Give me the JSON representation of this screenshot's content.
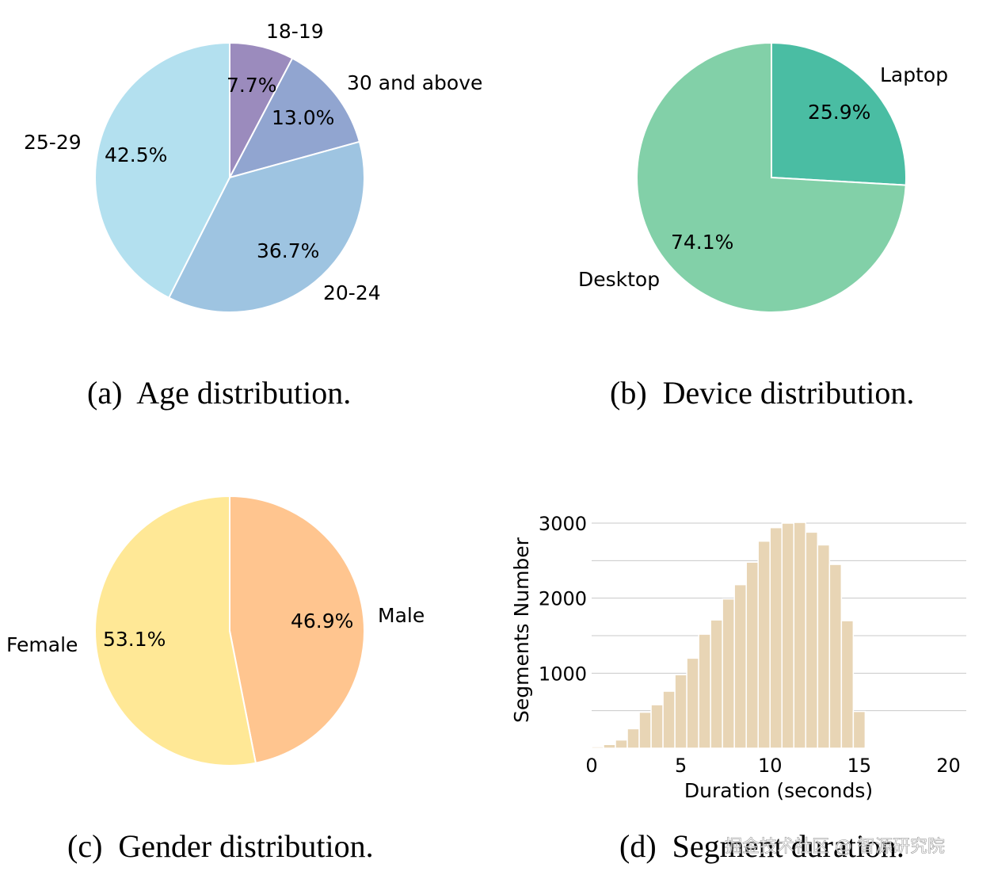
{
  "chart_data": [
    {
      "type": "pie",
      "caption": "(a)  Age distribution.",
      "slices": [
        {
          "label": "18-19",
          "value": 7.7,
          "pct_label": "7.7%",
          "color": "#9b8bbd"
        },
        {
          "label": "30 and above",
          "value": 13.0,
          "pct_label": "13.0%",
          "color": "#91a5d0"
        },
        {
          "label": "20-24",
          "value": 36.7,
          "pct_label": "36.7%",
          "color": "#9ec4e1"
        },
        {
          "label": "25-29",
          "value": 42.5,
          "pct_label": "42.5%",
          "color": "#b3e0ef"
        }
      ]
    },
    {
      "type": "pie",
      "caption": "(b)  Device distribution.",
      "slices": [
        {
          "label": "Laptop",
          "value": 25.9,
          "pct_label": "25.9%",
          "color": "#4abda3"
        },
        {
          "label": "Desktop",
          "value": 74.1,
          "pct_label": "74.1%",
          "color": "#82d0a8"
        }
      ]
    },
    {
      "type": "pie",
      "caption": "(c)  Gender distribution.",
      "slices": [
        {
          "label": "Male",
          "value": 46.9,
          "pct_label": "46.9%",
          "color": "#ffc58f"
        },
        {
          "label": "Female",
          "value": 53.1,
          "pct_label": "53.1%",
          "color": "#ffe896"
        }
      ]
    },
    {
      "type": "bar",
      "caption": "(d)  Segment duration.",
      "xlabel": "Duration (seconds)",
      "ylabel": "Segments Number",
      "xlim": [
        0,
        21
      ],
      "ylim": [
        0,
        3000
      ],
      "xticks": [
        0,
        5,
        10,
        15,
        20
      ],
      "yticks": [
        1000,
        2000,
        3000
      ],
      "grid": true,
      "bar_color": "#e8d5b5",
      "bin_width": 0.667,
      "bin_starts": [
        0,
        0.667,
        1.333,
        2,
        2.667,
        3.333,
        4,
        4.667,
        5.333,
        6,
        6.667,
        7.333,
        8,
        8.667,
        9.333,
        10,
        10.667,
        11.333,
        12,
        12.667,
        13.333,
        14,
        14.667,
        15.333
      ],
      "values": [
        20,
        50,
        110,
        260,
        480,
        580,
        760,
        980,
        1200,
        1520,
        1710,
        1990,
        2180,
        2480,
        2760,
        2940,
        3000,
        3010,
        2880,
        2710,
        2450,
        1700,
        490,
        10
      ]
    }
  ],
  "watermark": "掘金技术社区 @ 智源研究院"
}
